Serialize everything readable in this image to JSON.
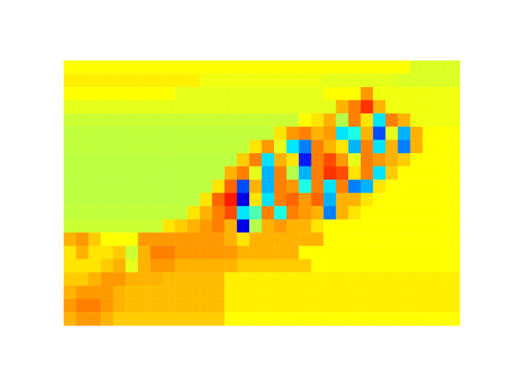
{
  "chart_data": {
    "type": "heatmap",
    "color": "jet",
    "tick_labels": false,
    "zlim": [
      -1,
      1
    ],
    "z": [
      [
        0.25,
        0.25,
        0.25,
        0.25,
        0.25,
        0.25,
        0.25,
        0.25,
        0.25,
        0.25,
        0.25,
        0.25,
        0.25,
        0.25,
        0.25,
        0.25,
        0.25,
        0.25,
        0.25,
        0.25,
        0.25,
        0.25,
        0.25,
        0.25,
        0.25,
        0.25,
        0.25,
        0.25,
        0.18,
        0.18,
        0.18,
        0.18
      ],
      [
        0.28,
        0.28,
        0.28,
        0.28,
        0.28,
        0.28,
        0.28,
        0.28,
        0.28,
        0.28,
        0.28,
        0.22,
        0.22,
        0.22,
        0.22,
        0.22,
        0.22,
        0.22,
        0.22,
        0.22,
        0.22,
        0.2,
        0.2,
        0.2,
        0.2,
        0.2,
        0.2,
        0.18,
        0.18,
        0.18,
        0.18,
        0.18
      ],
      [
        0.25,
        0.25,
        0.25,
        0.25,
        0.25,
        0.25,
        0.25,
        0.25,
        0.25,
        0.2,
        0.2,
        0.2,
        0.2,
        0.2,
        0.2,
        0.2,
        0.2,
        0.2,
        0.2,
        0.2,
        0.2,
        0.25,
        0.25,
        0.25,
        0.45,
        0.22,
        0.22,
        0.22,
        0.22,
        0.22,
        0.22,
        0.22
      ],
      [
        0.2,
        0.2,
        0.2,
        0.2,
        0.2,
        0.2,
        0.2,
        0.2,
        0.2,
        0.2,
        0.2,
        0.2,
        0.2,
        0.2,
        0.2,
        0.2,
        0.2,
        0.2,
        0.2,
        0.2,
        0.2,
        0.2,
        0.4,
        0.5,
        0.65,
        0.4,
        0.22,
        0.22,
        0.22,
        0.22,
        0.22,
        0.22
      ],
      [
        0.15,
        0.15,
        0.15,
        0.15,
        0.15,
        0.15,
        0.15,
        0.15,
        0.15,
        0.15,
        0.15,
        0.15,
        0.15,
        0.15,
        0.15,
        0.15,
        0.15,
        0.15,
        0.15,
        0.25,
        0.3,
        0.4,
        0.1,
        0.5,
        0.3,
        -0.3,
        0.5,
        0.4,
        0.22,
        0.22,
        0.22,
        0.22
      ],
      [
        0.13,
        0.13,
        0.13,
        0.13,
        0.13,
        0.13,
        0.13,
        0.13,
        0.13,
        0.13,
        0.13,
        0.13,
        0.13,
        0.13,
        0.13,
        0.13,
        0.13,
        0.3,
        0.45,
        0.5,
        0.4,
        0.45,
        -0.3,
        -0.2,
        0.4,
        -0.6,
        0.2,
        -0.4,
        0.4,
        0.25,
        0.25,
        0.25
      ],
      [
        0.13,
        0.13,
        0.13,
        0.13,
        0.13,
        0.13,
        0.13,
        0.13,
        0.13,
        0.13,
        0.13,
        0.13,
        0.13,
        0.13,
        0.13,
        0.3,
        0.45,
        0.2,
        -0.3,
        -0.5,
        0.5,
        0.4,
        0.3,
        -0.4,
        0.5,
        -0.3,
        0.4,
        -0.5,
        0.4,
        0.25,
        0.25,
        0.25
      ],
      [
        0.12,
        0.12,
        0.12,
        0.12,
        0.12,
        0.12,
        0.12,
        0.12,
        0.12,
        0.12,
        0.12,
        0.12,
        0.12,
        0.12,
        0.35,
        0.5,
        -0.3,
        0.4,
        0.3,
        -0.7,
        0.5,
        0.6,
        0.45,
        0.2,
        0.5,
        0.45,
        0.4,
        0.35,
        0.25,
        0.25,
        0.25,
        0.25
      ],
      [
        0.12,
        0.12,
        0.12,
        0.12,
        0.12,
        0.12,
        0.12,
        0.12,
        0.12,
        0.12,
        0.12,
        0.12,
        0.12,
        0.4,
        0.5,
        0.2,
        -0.4,
        0.5,
        0.1,
        -0.4,
        0.5,
        0.65,
        0.6,
        0.3,
        0.5,
        -0.3,
        0.35,
        0.25,
        0.25,
        0.25,
        0.25,
        0.25
      ],
      [
        0.12,
        0.12,
        0.12,
        0.12,
        0.12,
        0.12,
        0.12,
        0.12,
        0.12,
        0.12,
        0.12,
        0.12,
        0.3,
        0.55,
        -0.6,
        0.4,
        -0.4,
        0.5,
        0.45,
        -0.2,
        0.5,
        -0.3,
        0.5,
        -0.5,
        -0.4,
        0.3,
        0.25,
        0.25,
        0.25,
        0.25,
        0.25,
        0.25
      ],
      [
        0.12,
        0.12,
        0.12,
        0.12,
        0.12,
        0.12,
        0.12,
        0.12,
        0.12,
        0.12,
        0.12,
        0.3,
        0.55,
        0.7,
        -0.8,
        0.3,
        -0.3,
        0.5,
        0.55,
        0.45,
        0.55,
        -0.4,
        0.4,
        0.4,
        0.3,
        0.25,
        0.25,
        0.25,
        0.25,
        0.25,
        0.25,
        0.25
      ],
      [
        0.13,
        0.13,
        0.13,
        0.13,
        0.13,
        0.13,
        0.13,
        0.13,
        0.13,
        0.13,
        0.3,
        0.4,
        0.5,
        0.6,
        -0.3,
        -0.1,
        0.5,
        -0.2,
        0.5,
        0.45,
        0.4,
        -0.5,
        0.4,
        0.3,
        0.25,
        0.25,
        0.25,
        0.25,
        0.25,
        0.25,
        0.25,
        0.25
      ],
      [
        0.15,
        0.15,
        0.15,
        0.15,
        0.15,
        0.15,
        0.15,
        0.15,
        0.3,
        0.35,
        0.4,
        0.45,
        0.5,
        0.4,
        -0.8,
        0.1,
        0.4,
        0.45,
        0.4,
        0.4,
        0.3,
        0.25,
        0.25,
        0.25,
        0.25,
        0.25,
        0.25,
        0.25,
        0.25,
        0.25,
        0.25,
        0.25
      ],
      [
        0.4,
        0.45,
        0.35,
        0.25,
        0.25,
        0.25,
        0.45,
        0.45,
        0.45,
        0.45,
        0.45,
        0.45,
        0.45,
        0.4,
        0.3,
        0.4,
        0.4,
        0.4,
        0.4,
        0.4,
        0.4,
        0.25,
        0.25,
        0.25,
        0.25,
        0.25,
        0.25,
        0.25,
        0.25,
        0.25,
        0.25,
        0.25
      ],
      [
        0.3,
        0.4,
        0.3,
        0.3,
        0.35,
        0.15,
        0.4,
        0.5,
        0.5,
        0.45,
        0.45,
        0.45,
        0.45,
        0.45,
        0.4,
        0.4,
        0.4,
        0.4,
        0.4,
        0.25,
        0.25,
        0.25,
        0.25,
        0.25,
        0.25,
        0.25,
        0.25,
        0.25,
        0.25,
        0.25,
        0.25,
        0.25
      ],
      [
        0.3,
        0.3,
        0.3,
        0.35,
        0.4,
        0.2,
        0.4,
        0.45,
        0.45,
        0.4,
        0.4,
        0.4,
        0.4,
        0.4,
        0.35,
        0.35,
        0.35,
        0.35,
        0.35,
        0.35,
        0.25,
        0.25,
        0.25,
        0.25,
        0.25,
        0.25,
        0.25,
        0.25,
        0.25,
        0.25,
        0.25,
        0.25
      ],
      [
        0.35,
        0.35,
        0.4,
        0.45,
        0.45,
        0.4,
        0.4,
        0.4,
        0.38,
        0.38,
        0.38,
        0.38,
        0.38,
        0.28,
        0.28,
        0.28,
        0.28,
        0.28,
        0.28,
        0.28,
        0.28,
        0.28,
        0.28,
        0.28,
        0.28,
        0.28,
        0.28,
        0.28,
        0.28,
        0.28,
        0.28,
        0.28
      ],
      [
        0.4,
        0.45,
        0.45,
        0.45,
        0.4,
        0.38,
        0.38,
        0.38,
        0.38,
        0.38,
        0.38,
        0.38,
        0.38,
        0.28,
        0.28,
        0.28,
        0.28,
        0.28,
        0.28,
        0.28,
        0.28,
        0.28,
        0.28,
        0.28,
        0.28,
        0.28,
        0.28,
        0.28,
        0.28,
        0.28,
        0.28,
        0.28
      ],
      [
        0.45,
        0.5,
        0.5,
        0.45,
        0.4,
        0.38,
        0.38,
        0.38,
        0.38,
        0.38,
        0.38,
        0.38,
        0.38,
        0.28,
        0.28,
        0.28,
        0.28,
        0.28,
        0.28,
        0.28,
        0.28,
        0.28,
        0.28,
        0.28,
        0.28,
        0.28,
        0.28,
        0.28,
        0.28,
        0.28,
        0.28,
        0.28
      ],
      [
        0.4,
        0.45,
        0.45,
        0.4,
        0.35,
        0.35,
        0.35,
        0.35,
        0.35,
        0.35,
        0.35,
        0.35,
        0.35,
        0.25,
        0.25,
        0.25,
        0.25,
        0.25,
        0.25,
        0.25,
        0.25,
        0.25,
        0.25,
        0.25,
        0.25,
        0.25,
        0.25,
        0.25,
        0.25,
        0.25,
        0.25,
        0.25
      ]
    ]
  }
}
